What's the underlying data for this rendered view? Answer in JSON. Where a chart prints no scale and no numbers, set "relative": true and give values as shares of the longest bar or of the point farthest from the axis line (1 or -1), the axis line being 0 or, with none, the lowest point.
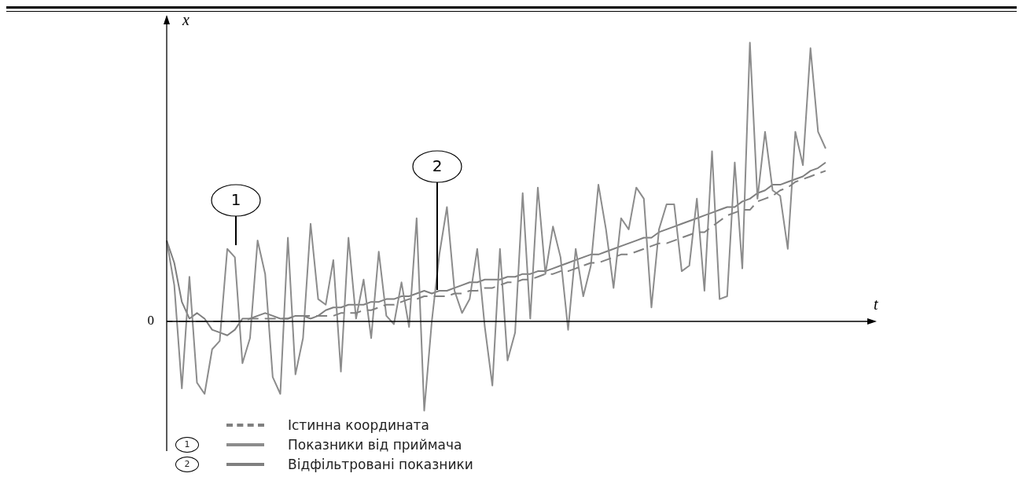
{
  "chart_data": {
    "type": "line",
    "relative": true,
    "xlabel": "t",
    "ylabel": "x",
    "legend": "bottom left",
    "categories": [
      null,
      null,
      null,
      null,
      null,
      null,
      null,
      null,
      null,
      null,
      null,
      null,
      null,
      null,
      null,
      null,
      null,
      null,
      null,
      null,
      null,
      null,
      null,
      null,
      null,
      null,
      null,
      null,
      null,
      null,
      null,
      null,
      null,
      null,
      null,
      null,
      null,
      null,
      null,
      null,
      null,
      null,
      null,
      null,
      null,
      null,
      null,
      null,
      null,
      null,
      null,
      null,
      null,
      null,
      null,
      null,
      null,
      null,
      null,
      null,
      null,
      null,
      null,
      null,
      null,
      null,
      null,
      null,
      null,
      null,
      null,
      null,
      null,
      null,
      null,
      null,
      null,
      null,
      null,
      null,
      null,
      null,
      null,
      null,
      null,
      null,
      null,
      null
    ],
    "annotations": [
      "0",
      "1",
      "2"
    ],
    "series": [
      {
        "name": "Істинна координата",
        "color": "#808080",
        "line_style": "dashed",
        "values": [
          0,
          0,
          0,
          0,
          0,
          0,
          0,
          0,
          0,
          0,
          0,
          0.01,
          0.01,
          0.01,
          0.01,
          0.01,
          0.01,
          0.02,
          0.02,
          0.02,
          0.02,
          0.02,
          0.02,
          0.03,
          0.03,
          0.03,
          0.04,
          0.04,
          0.05,
          0.06,
          0.06,
          0.07,
          0.08,
          0.08,
          0.09,
          0.09,
          0.09,
          0.09,
          0.1,
          0.1,
          0.11,
          0.11,
          0.12,
          0.12,
          0.13,
          0.14,
          0.14,
          0.15,
          0.15,
          0.16,
          0.17,
          0.17,
          0.18,
          0.18,
          0.19,
          0.2,
          0.21,
          0.21,
          0.22,
          0.23,
          0.24,
          0.24,
          0.25,
          0.26,
          0.27,
          0.28,
          0.28,
          0.29,
          0.3,
          0.31,
          0.32,
          0.32,
          0.34,
          0.36,
          0.38,
          0.39,
          0.4,
          0.4,
          0.43,
          0.44,
          0.45,
          0.47,
          0.48,
          0.5,
          0.51,
          0.52,
          0.53,
          0.54
        ]
      },
      {
        "name": "Показники від приймача",
        "color": "#8c8c8c",
        "line_style": "solid",
        "values": [
          0.29,
          0.13,
          -0.24,
          0.16,
          -0.22,
          -0.26,
          -0.1,
          -0.07,
          0.26,
          0.23,
          -0.15,
          -0.06,
          0.29,
          0.17,
          -0.2,
          -0.26,
          0.3,
          -0.19,
          -0.06,
          0.35,
          0.08,
          0.06,
          0.22,
          -0.18,
          0.3,
          0.01,
          0.15,
          -0.06,
          0.25,
          0.02,
          -0.01,
          0.14,
          -0.02,
          0.37,
          -0.32,
          0.0,
          0.24,
          0.41,
          0.11,
          0.03,
          0.08,
          0.26,
          -0.02,
          -0.23,
          0.26,
          -0.14,
          -0.04,
          0.46,
          0.01,
          0.48,
          0.17,
          0.34,
          0.23,
          -0.03,
          0.26,
          0.09,
          0.2,
          0.49,
          0.33,
          0.12,
          0.37,
          0.33,
          0.48,
          0.44,
          0.05,
          0.33,
          0.42,
          0.42,
          0.18,
          0.2,
          0.44,
          0.11,
          0.61,
          0.08,
          0.09,
          0.57,
          0.19,
          1.0,
          0.44,
          0.68,
          0.47,
          0.45,
          0.26,
          0.68,
          0.56,
          0.98,
          0.68,
          0.62
        ]
      },
      {
        "name": "Відфільтровані показники",
        "color": "#7f7f7f",
        "line_style": "solid",
        "values": [
          0.29,
          0.21,
          0.07,
          0.01,
          0.03,
          0.01,
          -0.03,
          -0.04,
          -0.05,
          -0.03,
          0.01,
          0.01,
          0.02,
          0.03,
          0.02,
          0.01,
          0.01,
          0.02,
          0.02,
          0.01,
          0.02,
          0.04,
          0.05,
          0.05,
          0.06,
          0.06,
          0.06,
          0.07,
          0.07,
          0.08,
          0.08,
          0.09,
          0.09,
          0.1,
          0.11,
          0.1,
          0.11,
          0.11,
          0.12,
          0.13,
          0.14,
          0.14,
          0.15,
          0.15,
          0.15,
          0.16,
          0.16,
          0.17,
          0.17,
          0.18,
          0.18,
          0.19,
          0.2,
          0.21,
          0.22,
          0.23,
          0.24,
          0.24,
          0.25,
          0.26,
          0.27,
          0.28,
          0.29,
          0.3,
          0.3,
          0.32,
          0.33,
          0.34,
          0.35,
          0.36,
          0.37,
          0.38,
          0.39,
          0.4,
          0.41,
          0.41,
          0.43,
          0.44,
          0.46,
          0.47,
          0.49,
          0.49,
          0.5,
          0.51,
          0.52,
          0.54,
          0.55,
          0.57
        ]
      }
    ]
  }
}
